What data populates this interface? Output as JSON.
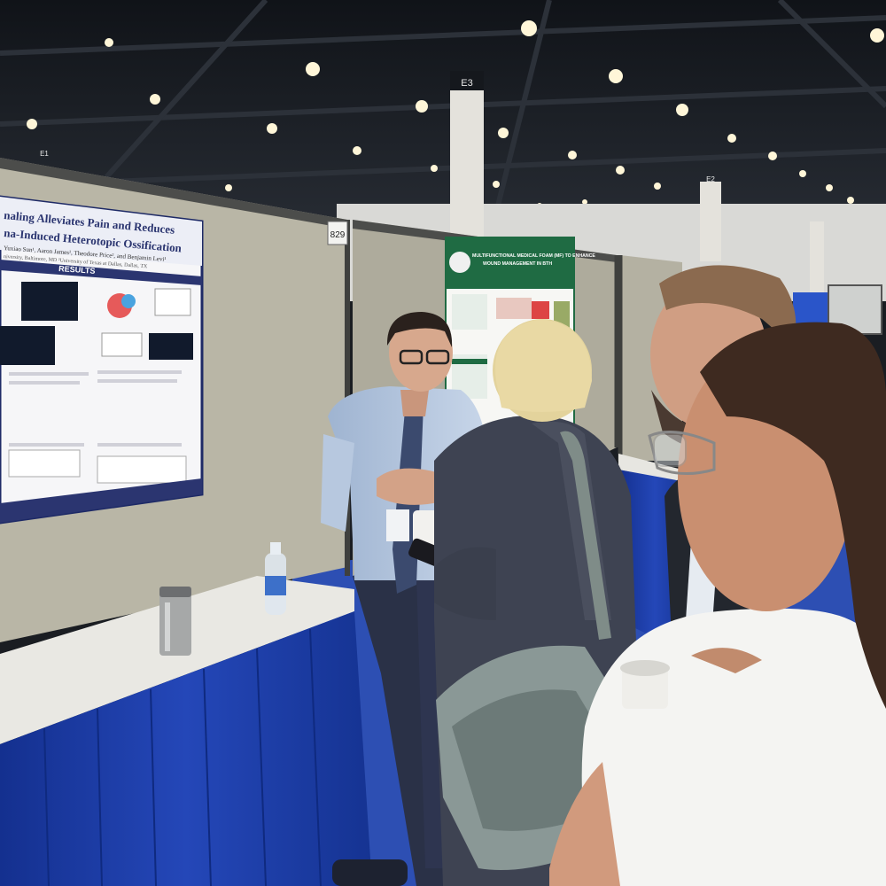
{
  "scene": {
    "pillar_labels": [
      "E3",
      "E2",
      "E1"
    ],
    "booth_number": "829",
    "poster_left": {
      "title_line1": "naling Alleviates Pain and Reduces",
      "title_line2": "na-Induced Heterotopic Ossification",
      "authors": "Yuxiao Sun¹, Aaron James¹, Theodore Price², and Benjamin Levi¹",
      "affiliation": "niversity, Baltimore, MD ²University of Texas at Dallas, Dallas, TX",
      "section_header": "RESULTS"
    },
    "poster_right": {
      "title_line1": "MULTIFUNCTIONAL MEDICAL FOAM (MF) TO ENHANCE",
      "title_line2": "WOUND MANAGEMENT IN BTH"
    },
    "colors": {
      "ceiling": "#15181d",
      "panel": "#b9b6a6",
      "table_skirt": "#1d3fa8",
      "carpet": "#2d4fb3",
      "poster_header": "#2b3570",
      "poster_green": "#1f6b43"
    }
  }
}
